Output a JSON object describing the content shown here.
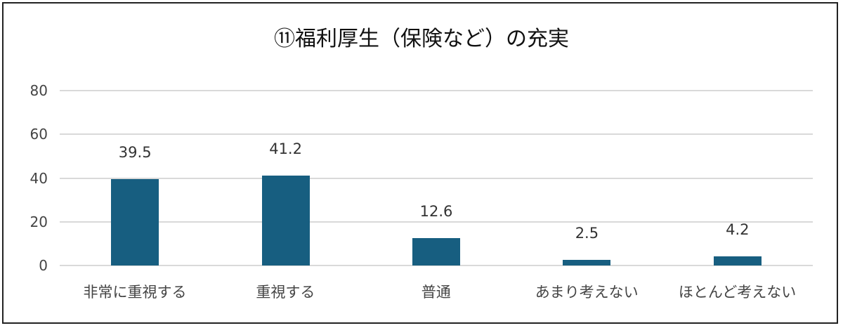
{
  "chart_data": {
    "type": "bar",
    "title": "⑪福利厚生（保険など）の充実",
    "categories": [
      "非常に重視する",
      "重視する",
      "普通",
      "あまり考えない",
      "ほとんど考えない"
    ],
    "values": [
      39.5,
      41.2,
      12.6,
      2.5,
      4.2
    ],
    "xlabel": "",
    "ylabel": "",
    "ylim": [
      0,
      80
    ],
    "yticks": [
      "0",
      "20",
      "40",
      "60",
      "80"
    ],
    "grid": true,
    "legend": null,
    "bar_color": "#175e80",
    "data_labels": [
      "39.5",
      "41.2",
      "12.6",
      "2.5",
      "4.2"
    ]
  }
}
